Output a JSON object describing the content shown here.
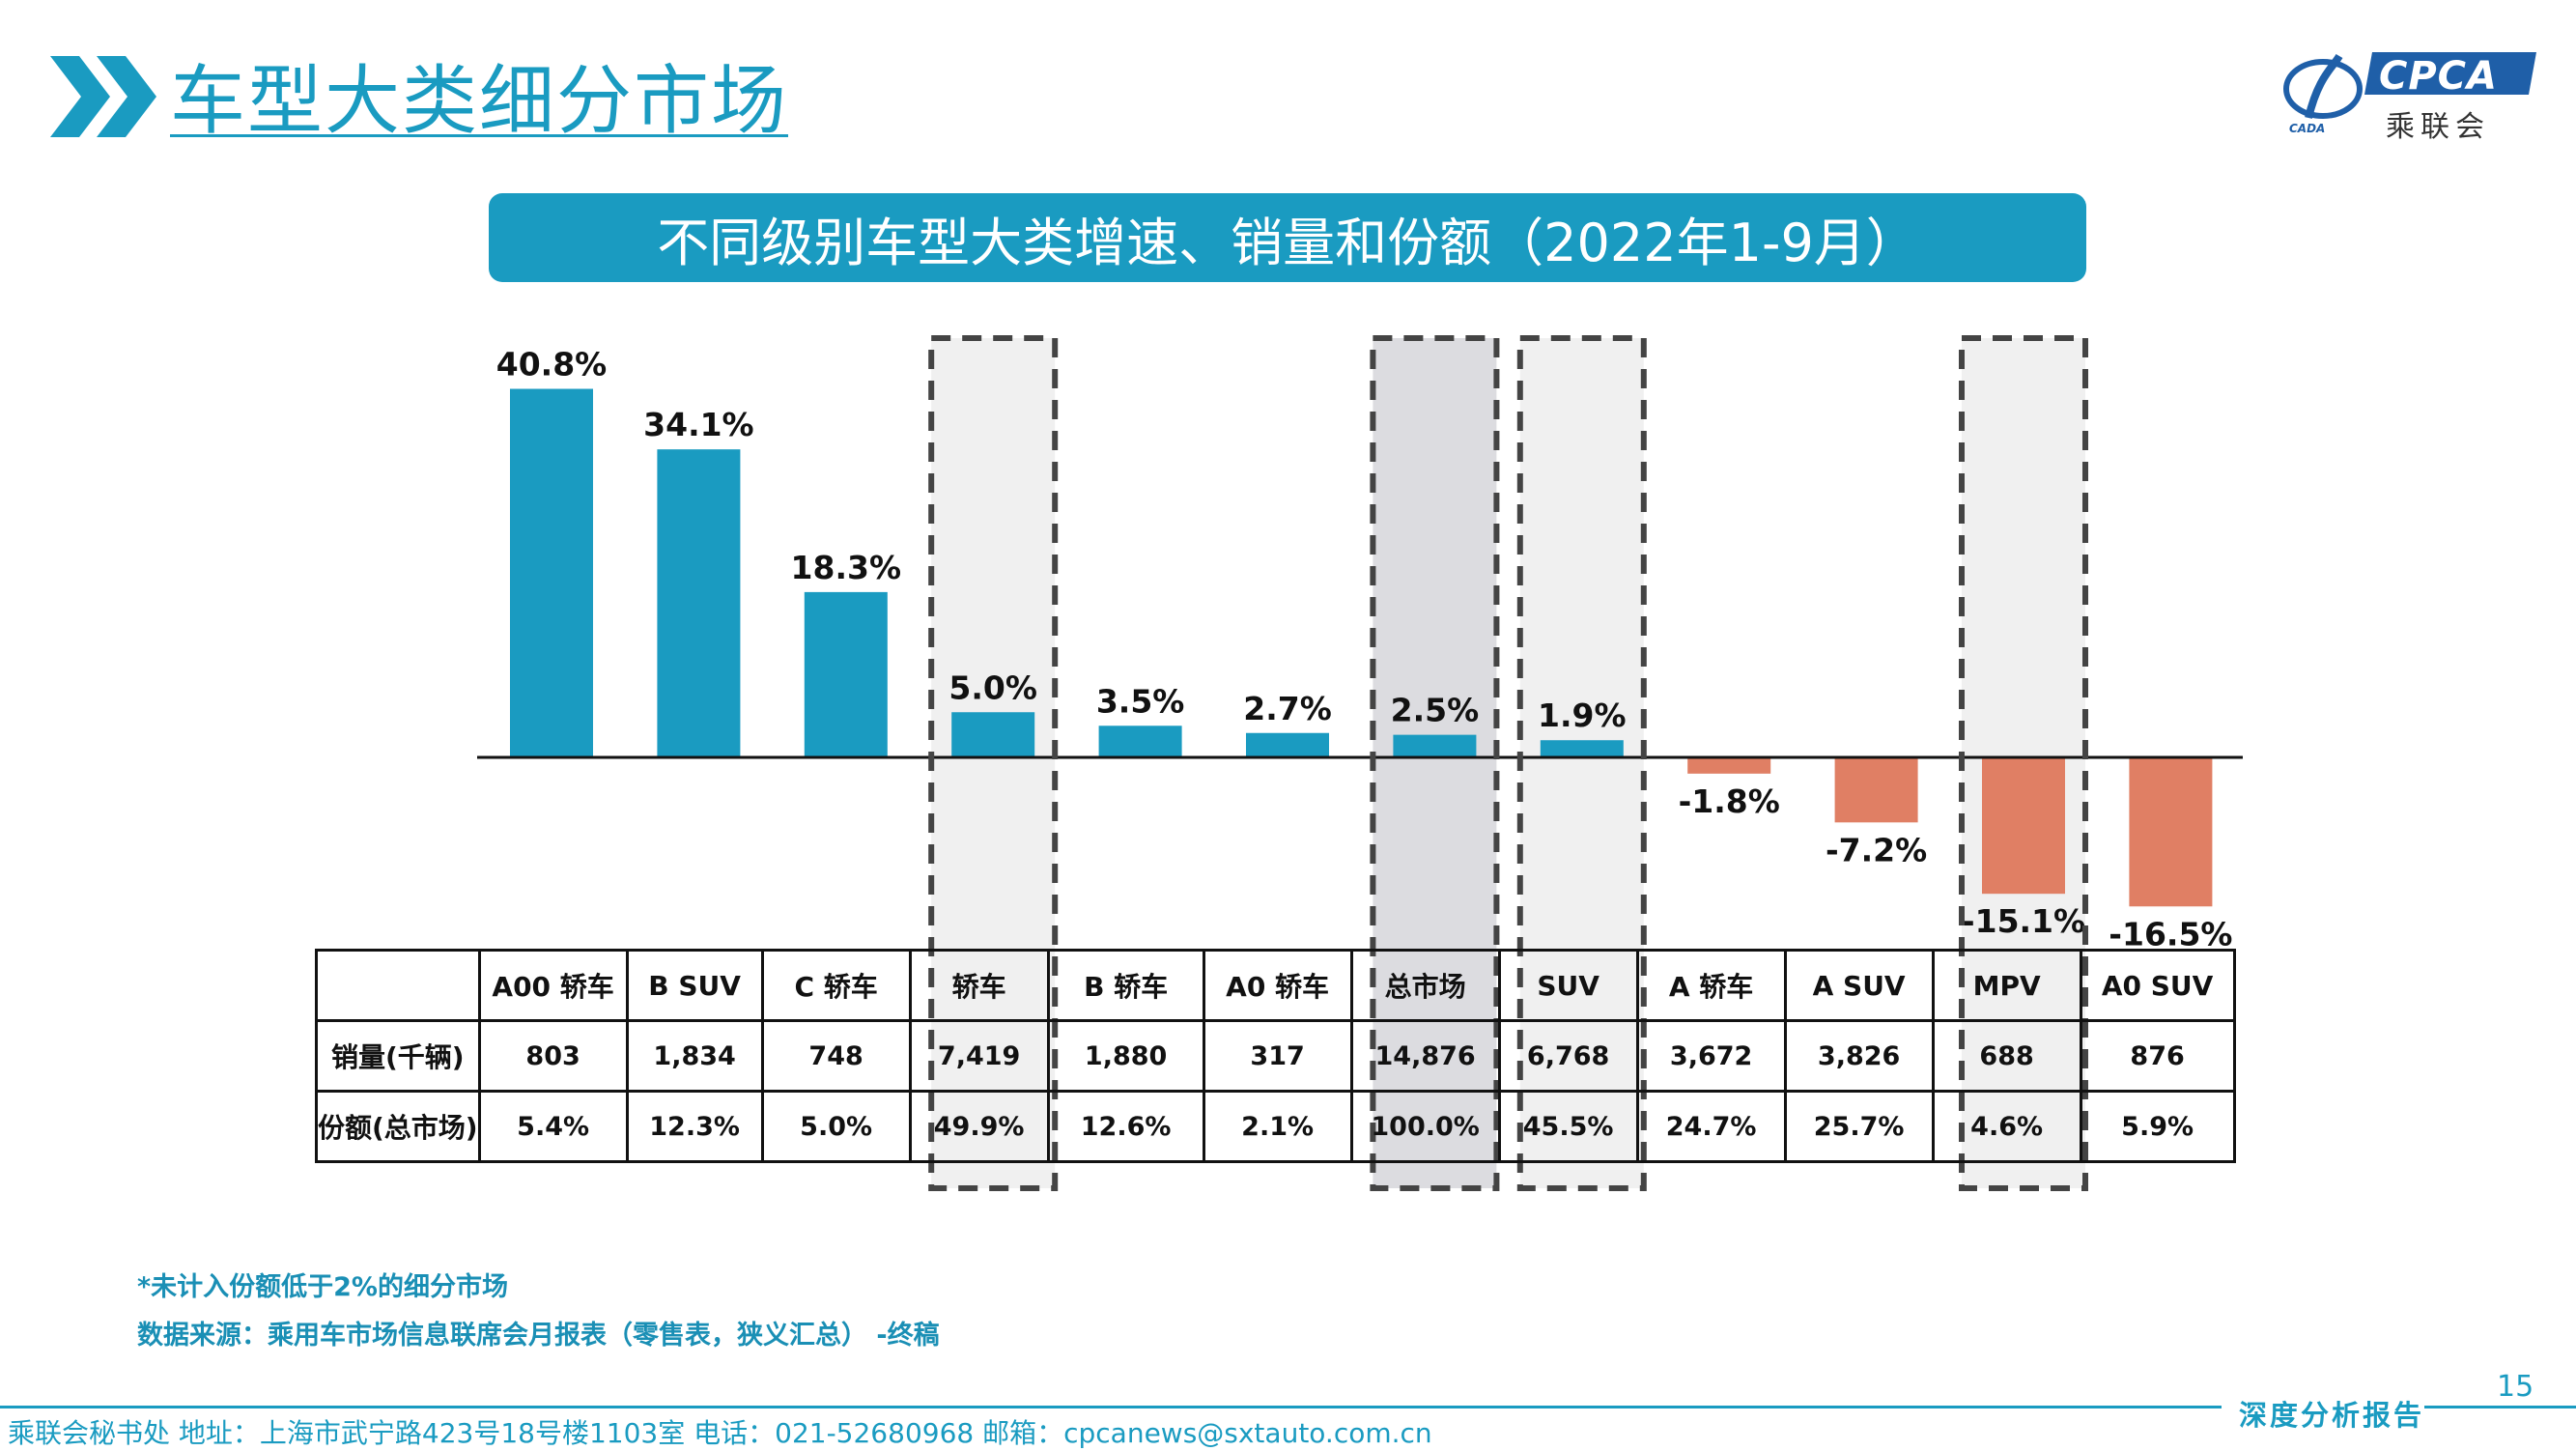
{
  "header": {
    "title": "车型大类细分市场",
    "logo_text": "CPCA",
    "logo_cn": "乘联会",
    "logo_sub": "CADA"
  },
  "subtitle": "不同级别车型大类增速、销量和份额（2022年1-9月）",
  "colors": {
    "accent": "#1a9bc1",
    "positive_bar": "#1a9bc1",
    "negative_bar": "#e07f64",
    "highlight_fill": "#f0f0f0",
    "highlight_total_fill": "#dcdce0"
  },
  "chart_data": {
    "type": "bar",
    "title": "不同级别车型大类增速、销量和份额（2022年1-9月）",
    "categories": [
      "A00 轿车",
      "B SUV",
      "C 轿车",
      "轿车",
      "B 轿车",
      "A0 轿车",
      "总市场",
      "SUV",
      "A 轿车",
      "A SUV",
      "MPV",
      "A0 SUV"
    ],
    "values": [
      40.8,
      34.1,
      18.3,
      5.0,
      3.5,
      2.7,
      2.5,
      1.9,
      -1.8,
      -7.2,
      -15.1,
      -16.5
    ],
    "value_labels": [
      "40.8%",
      "34.1%",
      "18.3%",
      "5.0%",
      "3.5%",
      "2.7%",
      "2.5%",
      "1.9%",
      "-1.8%",
      "-7.2%",
      "-15.1%",
      "-16.5%"
    ],
    "unit": "%",
    "highlighted": [
      "轿车",
      "总市场",
      "SUV",
      "MPV"
    ],
    "ylim": [
      -20,
      45
    ]
  },
  "table": {
    "row_labels": [
      "销量(千辆)",
      "份额(总市场)"
    ],
    "sales": [
      "803",
      "1,834",
      "748",
      "7,419",
      "1,880",
      "317",
      "14,876",
      "6,768",
      "3,672",
      "3,826",
      "688",
      "876"
    ],
    "share": [
      "5.4%",
      "12.3%",
      "5.0%",
      "49.9%",
      "12.6%",
      "2.1%",
      "100.0%",
      "45.5%",
      "24.7%",
      "25.7%",
      "4.6%",
      "5.9%"
    ]
  },
  "notes": {
    "note1": "*未计入份额低于2%的细分市场",
    "note2": "数据来源：乘用车市场信息联席会月报表（零售表，狭义汇总） -终稿"
  },
  "page_number": "15",
  "footer": {
    "text": "乘联会秘书处   地址：上海市武宁路423号18号楼1103室  电话：021-52680968   邮箱：cpcanews@sxtauto.com.cn",
    "report_label": "深度分析报告"
  }
}
